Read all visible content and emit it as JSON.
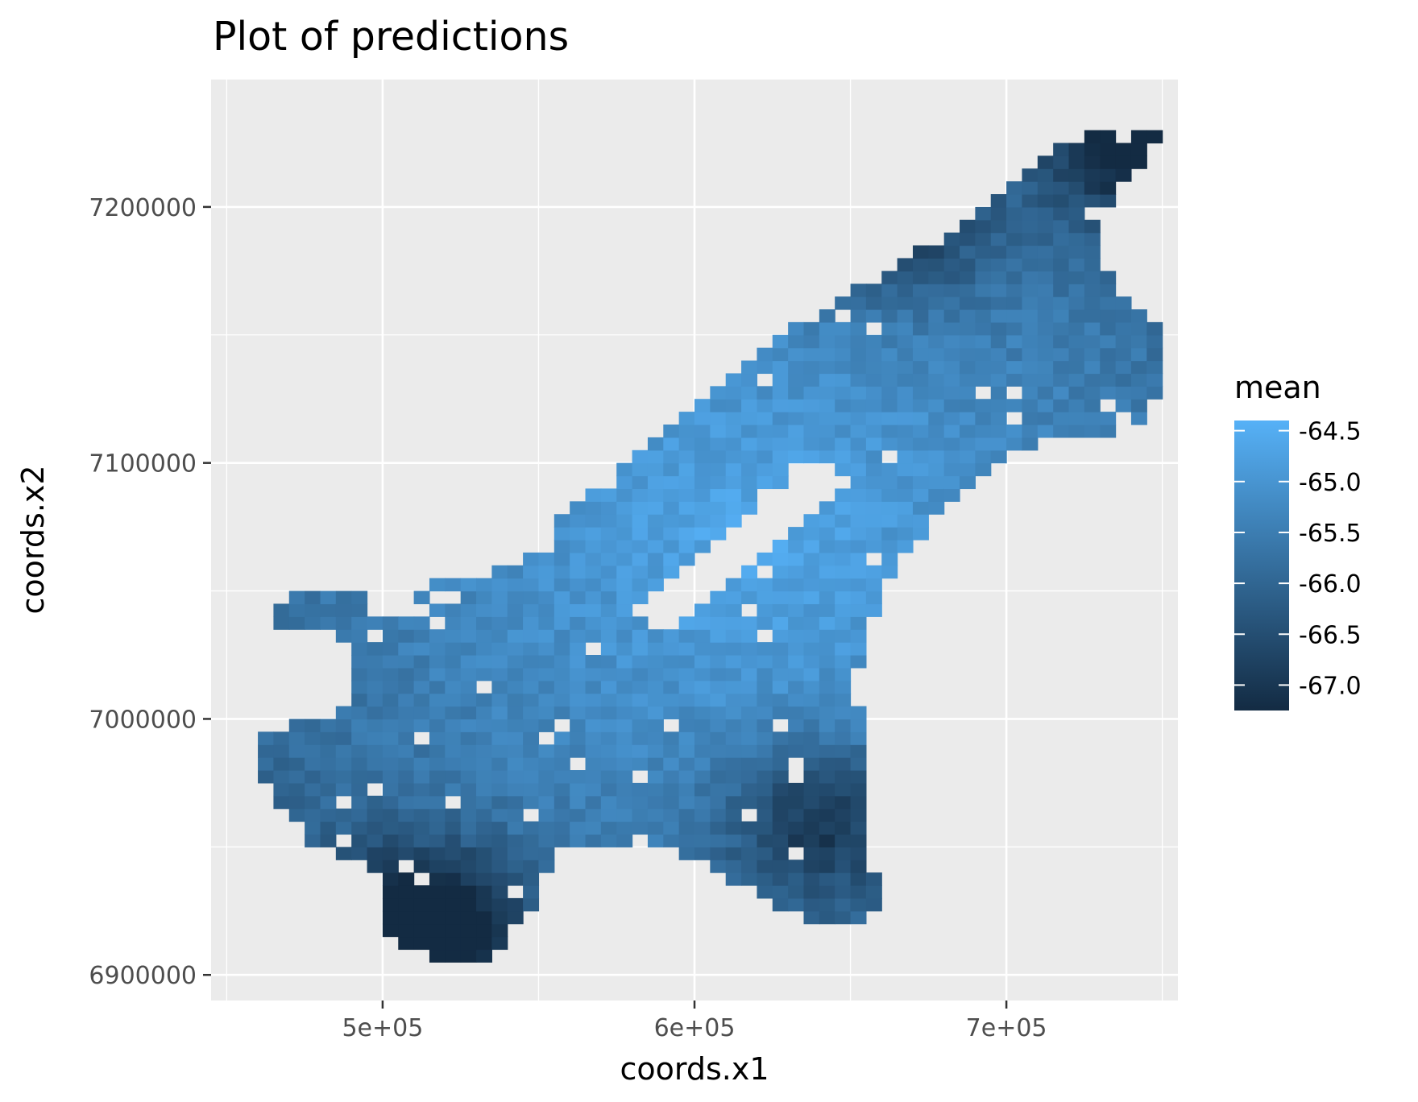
{
  "chart_data": {
    "type": "heatmap",
    "title": "Plot of predictions",
    "xlabel": "coords.x1",
    "ylabel": "coords.x2",
    "xlim": [
      445000,
      755000
    ],
    "ylim": [
      6890000,
      7250000
    ],
    "x_ticks": [
      500000,
      600000,
      700000
    ],
    "x_tick_labels": [
      "5e+05",
      "6e+05",
      "7e+05"
    ],
    "y_ticks": [
      6900000,
      7000000,
      7100000,
      7200000
    ],
    "y_tick_labels": [
      "6900000",
      "7000000",
      "7100000",
      "7200000"
    ],
    "grid": true,
    "legend": {
      "title": "mean",
      "position": "right",
      "range": [
        -67.25,
        -64.4
      ],
      "breaks": [
        -64.5,
        -65.0,
        -65.5,
        -66.0,
        -66.5,
        -67.0
      ],
      "break_labels": [
        "-64.5",
        "-65.0",
        "-65.5",
        "-66.0",
        "-66.5",
        "-67.0"
      ],
      "color_low": "#132b43",
      "color_high": "#56b1f7"
    },
    "cell_size": 5000,
    "region_outline": [
      [
        462000,
        6996000
      ],
      [
        488000,
        7003000
      ],
      [
        492000,
        7030000
      ],
      [
        465000,
        7038000
      ],
      [
        470000,
        7050000
      ],
      [
        500000,
        7052000
      ],
      [
        515000,
        7052000
      ],
      [
        543000,
        7060000
      ],
      [
        555000,
        7075000
      ],
      [
        565000,
        7088000
      ],
      [
        585000,
        7105000
      ],
      [
        597000,
        7120000
      ],
      [
        612000,
        7135000
      ],
      [
        628000,
        7150000
      ],
      [
        648000,
        7165000
      ],
      [
        668000,
        7180000
      ],
      [
        690000,
        7196000
      ],
      [
        705000,
        7215000
      ],
      [
        722000,
        7228000
      ],
      [
        745000,
        7232000
      ],
      [
        750000,
        7230000
      ],
      [
        745000,
        7220000
      ],
      [
        735000,
        7205000
      ],
      [
        727000,
        7190000
      ],
      [
        735000,
        7170000
      ],
      [
        748000,
        7155000
      ],
      [
        750000,
        7130000
      ],
      [
        745000,
        7118000
      ],
      [
        728000,
        7110000
      ],
      [
        712000,
        7110000
      ],
      [
        695000,
        7100000
      ],
      [
        682000,
        7085000
      ],
      [
        670000,
        7068000
      ],
      [
        660000,
        7050000
      ],
      [
        655000,
        7030000
      ],
      [
        650000,
        7010000
      ],
      [
        657000,
        6990000
      ],
      [
        655000,
        6970000
      ],
      [
        655000,
        6945000
      ],
      [
        662000,
        6925000
      ],
      [
        645000,
        6918000
      ],
      [
        628000,
        6925000
      ],
      [
        615000,
        6935000
      ],
      [
        605000,
        6945000
      ],
      [
        590000,
        6950000
      ],
      [
        575000,
        6952000
      ],
      [
        558000,
        6950000
      ],
      [
        550000,
        6935000
      ],
      [
        546000,
        6922000
      ],
      [
        532000,
        6905000
      ],
      [
        518000,
        6905000
      ],
      [
        500000,
        6915000
      ],
      [
        500000,
        6940000
      ],
      [
        478000,
        6950000
      ],
      [
        468000,
        6965000
      ],
      [
        455000,
        6990000
      ]
    ],
    "holes": [
      [
        [
          595000,
          7035000
        ],
        [
          612000,
          7055000
        ],
        [
          635000,
          7075000
        ],
        [
          650000,
          7095000
        ],
        [
          640000,
          7100000
        ],
        [
          620000,
          7085000
        ],
        [
          598000,
          7060000
        ],
        [
          580000,
          7040000
        ]
      ],
      [
        [
          495000,
          7040000
        ],
        [
          515000,
          7040000
        ],
        [
          510000,
          7050000
        ],
        [
          495000,
          7048000
        ]
      ]
    ],
    "extent": {
      "x": [
        460000,
        750000
      ],
      "y": [
        6905000,
        7230000
      ]
    },
    "hotspot": {
      "x": 618000,
      "y": 7070000,
      "value": -64.5
    },
    "coldspots": [
      {
        "x": 515000,
        "y": 6920000,
        "value": -67.2
      },
      {
        "x": 745000,
        "y": 7225000,
        "value": -67.0
      },
      {
        "x": 640000,
        "y": 6960000,
        "value": -66.7
      },
      {
        "x": 665000,
        "y": 7190000,
        "value": -66.4
      }
    ],
    "min_value": -67.25,
    "max_value": -64.4
  }
}
